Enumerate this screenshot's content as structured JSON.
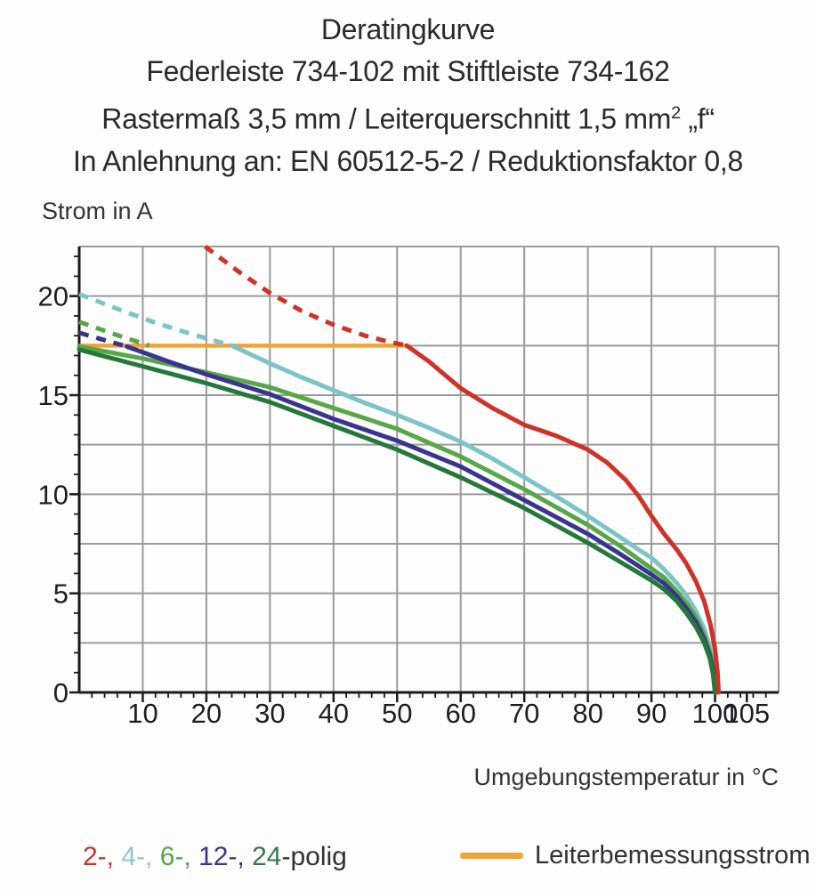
{
  "title": {
    "line1": "Deratingkurve",
    "line2": "Federleiste 734-102 mit Stiftleiste 734-162",
    "line3_pre": "Rastermaß 3,5 mm / Leiterquerschnitt 1,5 mm",
    "line3_sup": "2",
    "line3_post": " „f“",
    "line4": "In Anlehnung an: EN 60512-5-2 / Reduktionsfaktor 0,8"
  },
  "axes": {
    "y_title": "Strom in A",
    "x_title": "Umgebungstemperatur in °C"
  },
  "legend": {
    "pole_segments": [
      {
        "label": "2-,",
        "color": "#cf3228"
      },
      {
        "label": " 4-,",
        "color": "#8fc7c7"
      },
      {
        "label": " 6-,",
        "color": "#57a747"
      },
      {
        "label": " 12-,",
        "color": "#3a3390"
      },
      {
        "label": " 24",
        "color": "#35794a"
      },
      {
        "label": "-polig",
        "color": "#313134"
      }
    ],
    "limit_label": "Leiterbemessungsstrom",
    "limit_color": "#f0a232"
  },
  "chart_data": {
    "type": "line",
    "title": "Deratingkurve Federleiste 734-102 mit Stiftleiste 734-162",
    "xlabel": "Umgebungstemperatur in °C",
    "ylabel": "Strom in A",
    "x_axis": {
      "min": 0,
      "max": 110,
      "gridline_step": 10,
      "gridline_max": 100,
      "minor_tick_step": 2,
      "minor_tick_max": 108,
      "labeled_ticks": [
        10,
        20,
        30,
        40,
        50,
        60,
        70,
        80,
        90,
        100,
        105
      ]
    },
    "y_axis": {
      "min": 0,
      "max": 22.5,
      "gridline_step": 2.5,
      "gridline_max": 20,
      "minor_tick_step": 1,
      "minor_tick_max": 22,
      "labeled_ticks": [
        0,
        5,
        10,
        15,
        20
      ]
    },
    "grid_color": "#9b9b9b",
    "axis_color": "#1b1b1b",
    "limit_line": {
      "label": "Leiterbemessungsstrom",
      "y": 17.5,
      "x_start": 0,
      "x_end": 51.5,
      "color": "#f0a232"
    },
    "series": [
      {
        "name": "4-polig",
        "color": "#7cc5c6",
        "dashed": [
          [
            0,
            20.1
          ],
          [
            6,
            19.35
          ],
          [
            12,
            18.65
          ],
          [
            18,
            18.05
          ],
          [
            24,
            17.5
          ]
        ],
        "solid": [
          [
            24,
            17.5
          ],
          [
            30,
            16.6
          ],
          [
            35,
            15.9
          ],
          [
            40,
            15.25
          ],
          [
            45,
            14.6
          ],
          [
            50,
            14.0
          ],
          [
            55,
            13.35
          ],
          [
            60,
            12.65
          ],
          [
            65,
            11.8
          ],
          [
            70,
            10.85
          ],
          [
            75,
            9.9
          ],
          [
            80,
            8.9
          ],
          [
            85,
            7.85
          ],
          [
            88,
            7.2
          ],
          [
            90,
            6.8
          ],
          [
            92,
            6.2
          ],
          [
            94,
            5.5
          ],
          [
            95.5,
            4.9
          ],
          [
            97,
            4.1
          ],
          [
            98.3,
            3.2
          ],
          [
            99.2,
            2.3
          ],
          [
            99.8,
            1.3
          ],
          [
            100.2,
            0
          ]
        ]
      },
      {
        "name": "6-polig",
        "color": "#57a747",
        "dashed": [
          [
            0,
            18.7
          ],
          [
            5.5,
            18.08
          ],
          [
            11,
            17.5
          ]
        ],
        "solid": [
          [
            0,
            17.45
          ],
          [
            10,
            16.85
          ],
          [
            20,
            16.15
          ],
          [
            30,
            15.4
          ],
          [
            40,
            14.35
          ],
          [
            50,
            13.3
          ],
          [
            60,
            11.9
          ],
          [
            70,
            10.25
          ],
          [
            80,
            8.45
          ],
          [
            85,
            7.4
          ],
          [
            90,
            6.25
          ],
          [
            92,
            5.8
          ],
          [
            94,
            5.1
          ],
          [
            95.5,
            4.5
          ],
          [
            97,
            3.8
          ],
          [
            98.3,
            2.9
          ],
          [
            99.2,
            2.0
          ],
          [
            99.8,
            1.1
          ],
          [
            100.2,
            0
          ]
        ]
      },
      {
        "name": "12-polig",
        "color": "#3a3390",
        "dashed": [
          [
            0,
            18.15
          ],
          [
            3.5,
            17.82
          ],
          [
            7,
            17.5
          ]
        ],
        "solid": [
          [
            7.5,
            17.45
          ],
          [
            14,
            16.7
          ],
          [
            20,
            16.05
          ],
          [
            25,
            15.55
          ],
          [
            30,
            15.05
          ],
          [
            40,
            13.8
          ],
          [
            50,
            12.7
          ],
          [
            60,
            11.4
          ],
          [
            70,
            9.7
          ],
          [
            80,
            8.0
          ],
          [
            85,
            7.0
          ],
          [
            90,
            5.95
          ],
          [
            92,
            5.5
          ],
          [
            94,
            4.85
          ],
          [
            95.5,
            4.25
          ],
          [
            97,
            3.55
          ],
          [
            98.3,
            2.7
          ],
          [
            99.2,
            1.85
          ],
          [
            99.8,
            1.0
          ],
          [
            100.1,
            0
          ]
        ]
      },
      {
        "name": "24-polig",
        "color": "#23783a",
        "solid": [
          [
            0,
            17.3
          ],
          [
            10,
            16.45
          ],
          [
            20,
            15.6
          ],
          [
            30,
            14.65
          ],
          [
            40,
            13.45
          ],
          [
            50,
            12.25
          ],
          [
            60,
            10.85
          ],
          [
            70,
            9.3
          ],
          [
            80,
            7.55
          ],
          [
            85,
            6.6
          ],
          [
            90,
            5.65
          ],
          [
            92,
            5.2
          ],
          [
            94,
            4.6
          ],
          [
            95.5,
            4.0
          ],
          [
            97,
            3.3
          ],
          [
            98.3,
            2.5
          ],
          [
            99.2,
            1.7
          ],
          [
            99.7,
            0.9
          ],
          [
            100,
            0
          ]
        ]
      },
      {
        "name": "2-polig",
        "color": "#cf3228",
        "dashed": [
          [
            19.8,
            22.5
          ],
          [
            25,
            21.25
          ],
          [
            30,
            20.15
          ],
          [
            35,
            19.25
          ],
          [
            40,
            18.55
          ],
          [
            45,
            18.0
          ],
          [
            48,
            17.75
          ],
          [
            51.5,
            17.5
          ]
        ],
        "solid": [
          [
            51.5,
            17.5
          ],
          [
            55,
            16.7
          ],
          [
            60,
            15.35
          ],
          [
            65,
            14.35
          ],
          [
            70,
            13.5
          ],
          [
            75,
            12.95
          ],
          [
            80,
            12.25
          ],
          [
            83,
            11.6
          ],
          [
            86,
            10.7
          ],
          [
            88,
            9.9
          ],
          [
            90,
            8.9
          ],
          [
            92,
            8.0
          ],
          [
            94,
            7.2
          ],
          [
            95.5,
            6.5
          ],
          [
            97,
            5.6
          ],
          [
            98.3,
            4.6
          ],
          [
            99.3,
            3.4
          ],
          [
            100,
            2.2
          ],
          [
            100.4,
            1.0
          ],
          [
            100.55,
            0
          ]
        ]
      }
    ]
  }
}
